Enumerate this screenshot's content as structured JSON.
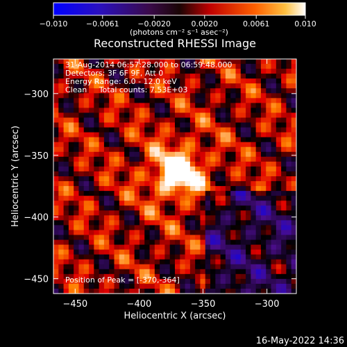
{
  "chart_data": {
    "type": "heatmap",
    "title": "Reconstructed RHESSI Image",
    "xlabel": "Heliocentric X (arcsec)",
    "ylabel": "Heliocentric Y (arcsec)",
    "xlim": [
      -467,
      -277
    ],
    "ylim": [
      -462,
      -272
    ],
    "xticks": [
      -450,
      -400,
      -350,
      -300
    ],
    "yticks": [
      -300,
      -350,
      -400,
      -450
    ],
    "xtick_labels": [
      "−450",
      "−400",
      "−350",
      "−300"
    ],
    "ytick_labels": [
      "−300",
      "−350",
      "−400",
      "−450"
    ],
    "colorbar": {
      "range": [
        -0.01,
        0.01
      ],
      "ticks": [
        -0.01,
        -0.0061,
        -0.002,
        0.002,
        0.0061,
        0.01
      ],
      "tick_labels": [
        "−0.010",
        "−0.0061",
        "−0.0020",
        "0.0020",
        "0.0061",
        "0.010"
      ],
      "unit_label": "(photons cm⁻² s⁻¹ asec⁻²)"
    },
    "annotations": [
      "31-Aug-2014 06:57:28.000 to 06:59:48.000",
      "Detectors: 3F 6F 9F, Att 0",
      "Energy Range: 6.0 - 12.0 keV",
      "Clean     Total counts: 7.53E+03"
    ],
    "peak_label": "Position of Peak = [-370,-364]",
    "peak": [
      -370,
      -364
    ],
    "peak_value": 0.01,
    "background_level": 0.0021,
    "grid": false,
    "legend": "none",
    "colormap": [
      "#0000ff",
      "#4a0d8a",
      "#000000",
      "#e00000",
      "#ff8000",
      "#ffffff"
    ]
  },
  "footer": {
    "timestamp": "16-May-2022 14:36"
  }
}
